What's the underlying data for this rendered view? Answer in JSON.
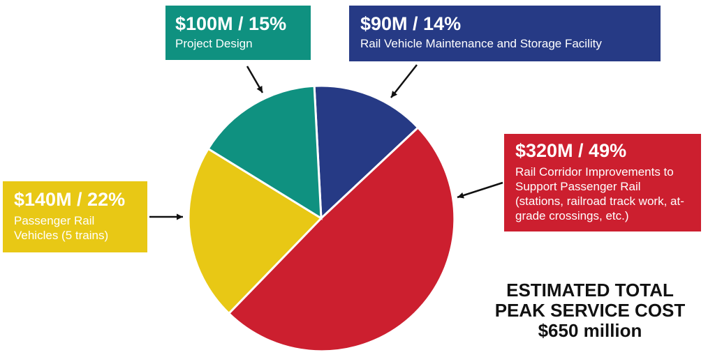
{
  "chart_data": {
    "type": "pie",
    "slices": [
      {
        "value_label": "$90M / 14%",
        "description": "Rail Vehicle Maintenance and Storage Facility",
        "value": 90,
        "percent": 14,
        "color": "#263a85"
      },
      {
        "value_label": "$320M / 49%",
        "description": "Rail Corridor Improvements to Support Passenger Rail (stations, railroad track work, at-grade crossings, etc.)",
        "value": 320,
        "percent": 49,
        "color": "#cc1f2f"
      },
      {
        "value_label": "$140M / 22%",
        "description": "Passenger Rail Vehicles (5 trains)",
        "value": 140,
        "percent": 22,
        "color": "#e8c815"
      },
      {
        "value_label": "$100M / 15%",
        "description": "Project Design",
        "value": 100,
        "percent": 15,
        "color": "#0f9180"
      }
    ],
    "total": {
      "line1": "ESTIMATED TOTAL",
      "line2": "PEAK SERVICE COST",
      "line3": "$650 million"
    }
  }
}
